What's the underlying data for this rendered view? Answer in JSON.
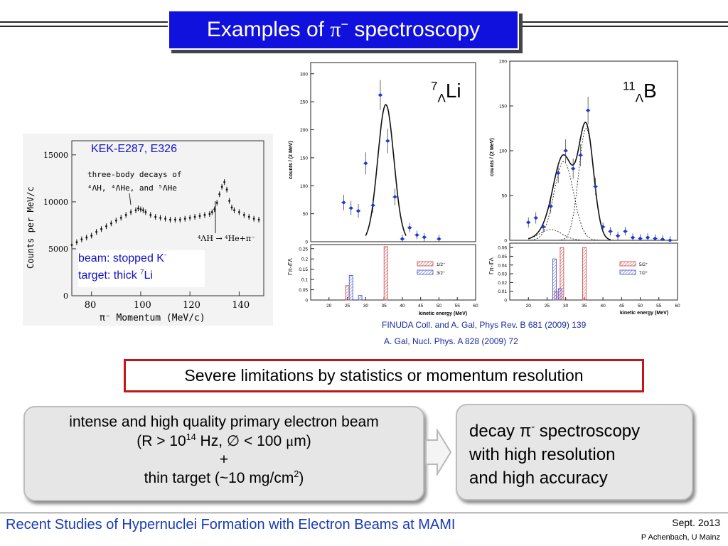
{
  "slide": {
    "title_prefix": "Examples of ",
    "title_symbol": "π",
    "title_sup": "−",
    "title_suffix": " spectroscopy"
  },
  "kek_plot": {
    "label": "KEK-E287, E326",
    "annotation_line1": "three-body decays of",
    "annotation_nuclei": "⁴ΛH, ⁴ΛHe, and ⁵ΛHe",
    "decay_label": "⁴ΛH → ⁴He+π⁻",
    "ylabel": "Counts per MeV/c",
    "xlabel": "π⁻ Momentum (MeV/c)",
    "x_ticks": [
      "80",
      "100",
      "120",
      "140"
    ],
    "y_ticks": [
      "0",
      "5000",
      "10000",
      "15000"
    ],
    "beam_label": "beam: stopped K",
    "beam_sup": "-",
    "target_label": "target: thick ",
    "target_sup": "7",
    "target_element": "Li"
  },
  "li_plot": {
    "nucleus_mass": "7",
    "nucleus_sub": "Λ",
    "nucleus_element": "Li",
    "upper_ylabel": "counts / (2 MeV)",
    "lower_ylabel": "Γπ-/ΓΛ",
    "xlabel": "kinetic energy (MeV)",
    "upper_y_ticks": [
      "0",
      "50",
      "100",
      "150",
      "200",
      "250",
      "300"
    ],
    "lower_y_ticks": [
      "0",
      "0.05",
      "0.1",
      "0.15",
      "0.2",
      "0.25"
    ],
    "x_ticks": [
      "20",
      "25",
      "30",
      "35",
      "40",
      "45",
      "50",
      "55",
      "60"
    ],
    "legend": [
      "1/2⁺",
      "3/2⁺"
    ]
  },
  "b_plot": {
    "nucleus_mass": "11",
    "nucleus_sub": "Λ",
    "nucleus_element": "B",
    "upper_ylabel": "counts / (2 MeV)",
    "lower_ylabel": "Γπ-/ΓΛ",
    "xlabel": "kinetic energy (MeV)",
    "upper_y_ticks": [
      "0",
      "50",
      "100",
      "150",
      "200"
    ],
    "lower_y_ticks": [
      "0",
      "0.01",
      "0.02",
      "0.03",
      "0.04",
      "0.05",
      "0.06"
    ],
    "x_ticks": [
      "20",
      "25",
      "30",
      "35",
      "40",
      "45",
      "50",
      "55",
      "60"
    ],
    "legend": [
      "5/2⁺",
      "7/2⁺"
    ]
  },
  "references": {
    "ref1": "FINUDA Coll. and A. Gal, Phys Rev. B 681 (2009) 139",
    "ref2": "A. Gal, Nucl. Phys. A 828 (2009) 72"
  },
  "limitation": "Severe limitations by statistics or momentum resolution",
  "left_box": {
    "line1": "intense and high quality primary electron beam",
    "line2_prefix": "(R > 10",
    "line2_sup": "14",
    "line2_mid": " Hz, ∅ < 100 ",
    "line2_mu": "μ",
    "line2_suffix": "m)",
    "line3": "+",
    "line4_prefix": "thin target (~10 mg/cm",
    "line4_sup": "2",
    "line4_suffix": ")"
  },
  "right_box": {
    "line1_prefix": "decay π",
    "line1_sup": "-",
    "line1_suffix": " spectroscopy",
    "line2": "with high resolution",
    "line3": "and high accuracy"
  },
  "footer": {
    "title": "Recent Studies of Hypernuclei Formation with Electron Beams at MAMI",
    "date": "Sept. 2o13",
    "author": "P Achenbach, U Mainz"
  },
  "colors": {
    "title_bg": "#1111dd",
    "accent_blue": "#1a3ab8",
    "alert_red": "#c01818",
    "data_points": "#1a3ad8",
    "hatch_red": "#d04040",
    "hatch_blue": "#4050c8"
  },
  "chart_data": [
    {
      "type": "scatter",
      "name": "KEK-E287, E326",
      "xlabel": "π⁻ Momentum (MeV/c)",
      "ylabel": "Counts per MeV/c",
      "xlim": [
        72,
        150
      ],
      "ylim": [
        0,
        16500
      ],
      "x": [
        72,
        74,
        76,
        78,
        80,
        82,
        84,
        86,
        88,
        90,
        92,
        94,
        96,
        98,
        99,
        100,
        101,
        102,
        104,
        106,
        108,
        110,
        112,
        114,
        116,
        118,
        120,
        122,
        124,
        126,
        128,
        129,
        130,
        131,
        132,
        133,
        134,
        135,
        136,
        137,
        138,
        140,
        142,
        144,
        146,
        148
      ],
      "y": [
        5400,
        5700,
        6000,
        6200,
        6400,
        6800,
        7100,
        7400,
        7700,
        8000,
        8300,
        8600,
        8900,
        9100,
        9300,
        9200,
        9100,
        8900,
        8600,
        8400,
        8300,
        8200,
        8100,
        8100,
        8100,
        8200,
        8300,
        8400,
        8500,
        8600,
        8700,
        8900,
        9200,
        9900,
        10800,
        11600,
        12100,
        11300,
        10100,
        9400,
        9100,
        8900,
        8600,
        8400,
        8200,
        8100
      ]
    },
    {
      "type": "scatter",
      "name": "7ΛLi counts",
      "xlabel": "kinetic energy (MeV)",
      "ylabel": "counts / (2 MeV)",
      "xlim": [
        15,
        60
      ],
      "ylim": [
        0,
        320
      ],
      "x": [
        24,
        26,
        28,
        30,
        32,
        34,
        36,
        38,
        40,
        42,
        44,
        46,
        50
      ],
      "y": [
        70,
        60,
        55,
        140,
        65,
        262,
        180,
        80,
        5,
        25,
        12,
        8,
        5
      ]
    },
    {
      "type": "bar",
      "name": "7ΛLi branching ratio",
      "xlabel": "kinetic energy (MeV)",
      "ylabel": "Γπ-/ΓΛ",
      "ylim": [
        0,
        0.27
      ],
      "series": [
        {
          "name": "1/2⁺",
          "x": [
            25,
            35.5
          ],
          "values": [
            0.07,
            0.26
          ]
        },
        {
          "name": "3/2⁺",
          "x": [
            26,
            28.5
          ],
          "values": [
            0.12,
            0.022
          ]
        }
      ]
    },
    {
      "type": "scatter",
      "name": "11ΛB counts",
      "xlabel": "kinetic energy (MeV)",
      "ylabel": "counts / (2 MeV)",
      "xlim": [
        15,
        60
      ],
      "ylim": [
        0,
        200
      ],
      "x": [
        20,
        22,
        24,
        26,
        28,
        30,
        32,
        34,
        36,
        38,
        40,
        42,
        44,
        46,
        48,
        50,
        52,
        54,
        56,
        58
      ],
      "y": [
        20,
        25,
        15,
        38,
        75,
        100,
        80,
        95,
        145,
        60,
        15,
        10,
        5,
        10,
        3,
        2,
        3,
        2,
        1,
        0
      ]
    },
    {
      "type": "bar",
      "name": "11ΛB branching ratio",
      "xlabel": "kinetic energy (MeV)",
      "ylabel": "Γπ-/ΓΛ",
      "ylim": [
        0,
        0.065
      ],
      "series": [
        {
          "name": "5/2⁺",
          "x": [
            27.5,
            29,
            35
          ],
          "values": [
            0.01,
            0.06,
            0.06
          ]
        },
        {
          "name": "7/2⁺",
          "x": [
            27,
            28.5
          ],
          "values": [
            0.047,
            0.013
          ]
        }
      ]
    }
  ]
}
